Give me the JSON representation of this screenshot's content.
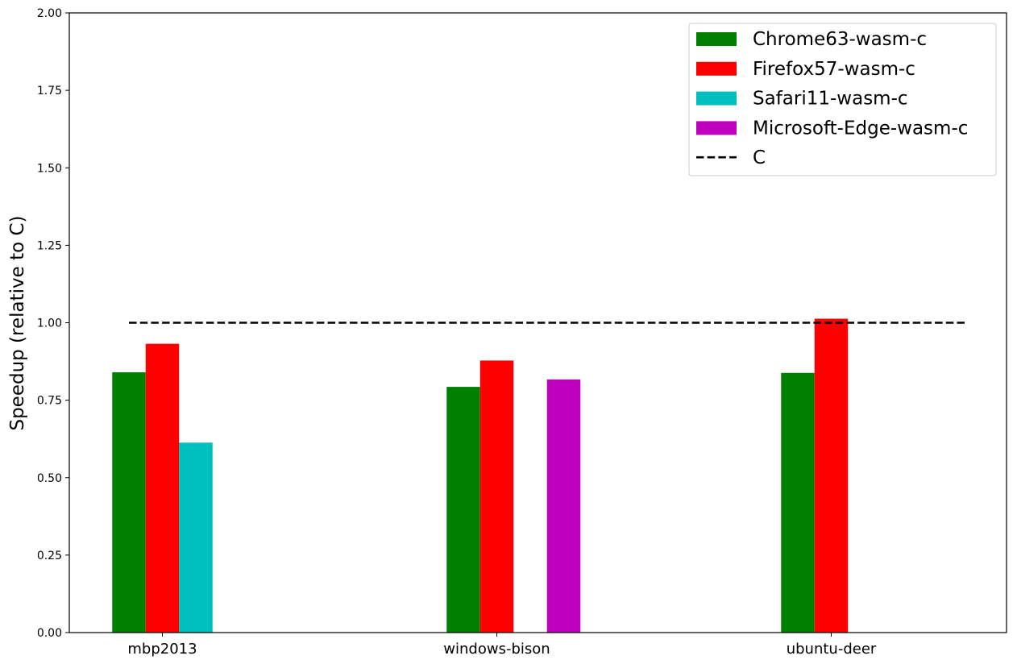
{
  "chart_data": {
    "type": "bar",
    "title": "",
    "xlabel": "",
    "ylabel": "Speedup (relative to C)",
    "ylim": [
      0,
      2.0
    ],
    "yticks": [
      "0.00",
      "0.25",
      "0.50",
      "0.75",
      "1.00",
      "1.25",
      "1.50",
      "1.75",
      "2.00"
    ],
    "grid": false,
    "legend_position": "top-right",
    "categories": [
      "mbp2013",
      "windows-bison",
      "ubuntu-deer"
    ],
    "series": [
      {
        "name": "Chrome63-wasm-c",
        "color": "#008000",
        "values": [
          0.84,
          0.793,
          0.838
        ]
      },
      {
        "name": "Firefox57-wasm-c",
        "color": "#ff0000",
        "values": [
          0.932,
          0.878,
          1.013
        ]
      },
      {
        "name": "Safari11-wasm-c",
        "color": "#00bfbf",
        "values": [
          0.613,
          null,
          null
        ]
      },
      {
        "name": "Microsoft-Edge-wasm-c",
        "color": "#bf00bf",
        "values": [
          null,
          0.817,
          null
        ]
      }
    ],
    "reference_line": {
      "name": "C",
      "value": 1.0,
      "color": "#000000",
      "style": "dashed"
    }
  }
}
